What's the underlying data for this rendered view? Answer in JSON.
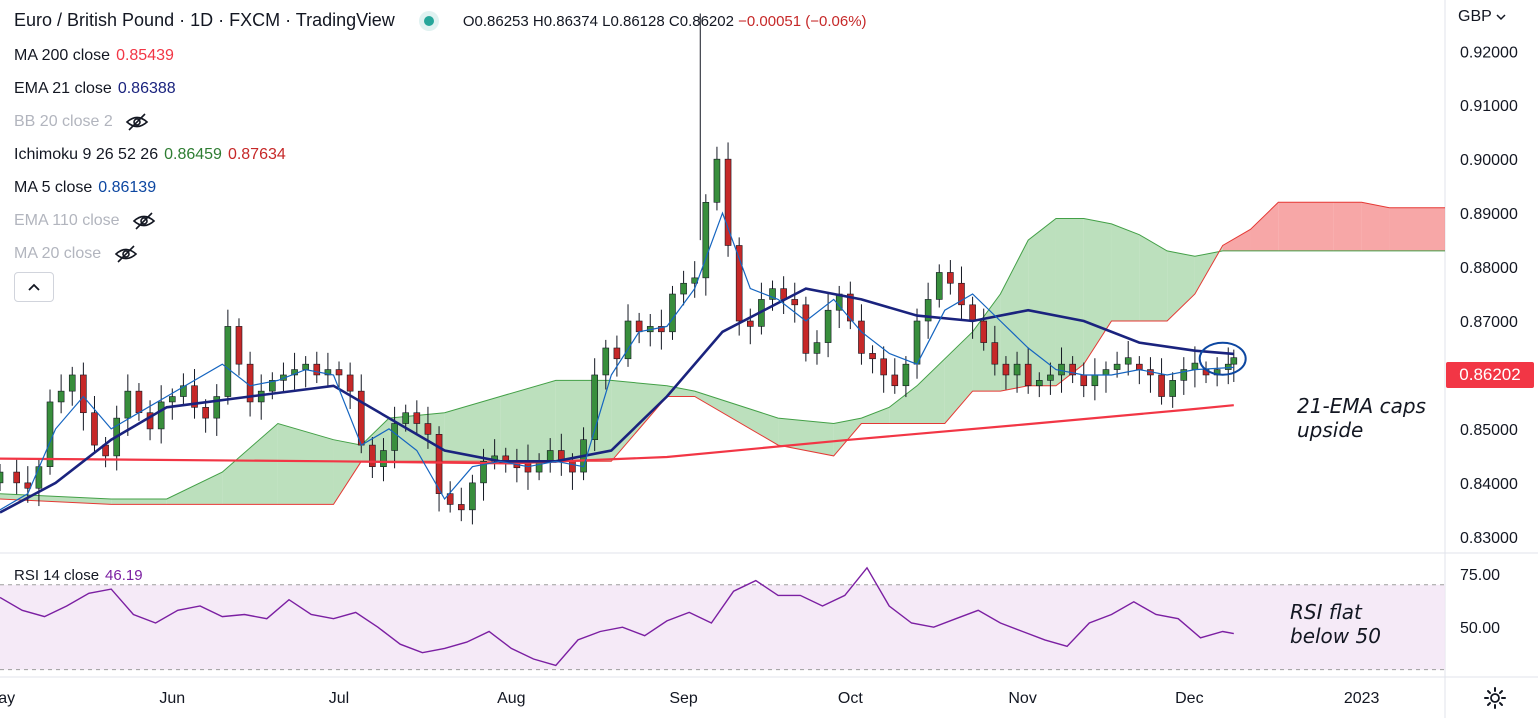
{
  "header": {
    "title": "Euro / British Pound · 1D · FXCM · TradingView",
    "ohlc": {
      "open": "O0.86253",
      "high": "H0.86374",
      "low": "L0.86128",
      "close": "C0.86202",
      "change": "−0.00051 (−0.06%)"
    },
    "currency": "GBP"
  },
  "indicators": [
    {
      "label": "MA 200 close",
      "value": "0.85439",
      "color": "#f23645"
    },
    {
      "label": "EMA 21 close",
      "value": "0.86388",
      "color": "#1a237e"
    },
    {
      "label": "BB 20 close 2",
      "hidden": true
    },
    {
      "label": "Ichimoku 9 26 52 26",
      "value": "0.86459",
      "value2": "0.87634",
      "color": "#2e7d32",
      "color2": "#c62828"
    },
    {
      "label": "MA 5 close",
      "value": "0.86139",
      "color": "#0d47a1"
    },
    {
      "label": "EMA 110 close",
      "hidden": true
    },
    {
      "label": "MA 20 close",
      "hidden": true
    }
  ],
  "price_badge": "0.86202",
  "annotations": {
    "ema_note": [
      "21-EMA caps",
      "upside"
    ],
    "rsi_note": [
      "RSI flat",
      "below 50"
    ]
  },
  "rsi": {
    "label": "RSI 14 close",
    "value": "46.19",
    "color": "#7b1fa2"
  },
  "colors": {
    "up": "#388e3c",
    "down": "#c62828",
    "cloud_up": "#a5d6a7",
    "cloud_down": "#f48a8a",
    "ma200": "#f23645",
    "ema21": "#1a237e",
    "ma5": "#1565c0",
    "rsi": "#7b1fa2"
  },
  "chart_data": [
    {
      "type": "candlestick",
      "title": "Euro / British Pound · 1D · FXCM",
      "x_ticks": [
        "May",
        "Jun",
        "Jul",
        "Aug",
        "Sep",
        "Oct",
        "Nov",
        "Dec",
        "2023"
      ],
      "x_tick_days": [
        0,
        31,
        61,
        92,
        123,
        153,
        184,
        214,
        245
      ],
      "y_ticks": [
        "0.83000",
        "0.84000",
        "0.85000",
        "0.86000",
        "0.87000",
        "0.88000",
        "0.89000",
        "0.90000",
        "0.91000",
        "0.92000"
      ],
      "ylim": [
        0.827,
        0.9295
      ],
      "xlim_days": [
        0,
        260
      ],
      "candles_monthly_summary": [
        {
          "month": "May",
          "open": 0.842,
          "high": 0.862,
          "low": 0.837,
          "close": 0.856
        },
        {
          "month": "Jun",
          "open": 0.856,
          "high": 0.872,
          "low": 0.848,
          "close": 0.861
        },
        {
          "month": "Jul",
          "open": 0.86,
          "high": 0.867,
          "low": 0.841,
          "close": 0.847
        },
        {
          "month": "Aug",
          "open": 0.847,
          "high": 0.851,
          "low": 0.8345,
          "close": 0.844
        },
        {
          "month": "Sep",
          "open": 0.844,
          "high": 0.927,
          "low": 0.842,
          "close": 0.879
        },
        {
          "month": "Oct",
          "open": 0.879,
          "high": 0.886,
          "low": 0.857,
          "close": 0.871
        },
        {
          "month": "Nov",
          "open": 0.871,
          "high": 0.883,
          "low": 0.857,
          "close": 0.862
        },
        {
          "month": "Dec",
          "open": 0.862,
          "high": 0.8637,
          "low": 0.855,
          "close": 0.862
        }
      ],
      "close_series": {
        "x": [
          0,
          3,
          5,
          7,
          9,
          11,
          13,
          15,
          17,
          19,
          21,
          23,
          25,
          27,
          29,
          31,
          33,
          35,
          37,
          39,
          41,
          43,
          45,
          47,
          49,
          51,
          53,
          55,
          57,
          59,
          61,
          63,
          65,
          67,
          69,
          71,
          73,
          75,
          77,
          79,
          81,
          83,
          85,
          87,
          89,
          91,
          93,
          95,
          97,
          99,
          101,
          103,
          105,
          107,
          109,
          111,
          113,
          115,
          117,
          119,
          121,
          123,
          125,
          127,
          129,
          131,
          133,
          135,
          137,
          139,
          141,
          143,
          145,
          147,
          149,
          151,
          153,
          155,
          157,
          159,
          161,
          163,
          165,
          167,
          169,
          171,
          173,
          175,
          177,
          179,
          181,
          183,
          185,
          187,
          189,
          191,
          193,
          195,
          197,
          199,
          201,
          203,
          205,
          207,
          209,
          211,
          213,
          215,
          217,
          219,
          221,
          222
        ],
        "y": [
          0.842,
          0.84,
          0.839,
          0.843,
          0.855,
          0.857,
          0.86,
          0.853,
          0.847,
          0.845,
          0.852,
          0.857,
          0.853,
          0.85,
          0.855,
          0.856,
          0.858,
          0.854,
          0.852,
          0.856,
          0.869,
          0.862,
          0.855,
          0.857,
          0.859,
          0.86,
          0.861,
          0.862,
          0.86,
          0.861,
          0.86,
          0.857,
          0.847,
          0.843,
          0.846,
          0.851,
          0.853,
          0.851,
          0.849,
          0.838,
          0.836,
          0.835,
          0.84,
          0.844,
          0.845,
          0.844,
          0.844,
          0.842,
          0.844,
          0.846,
          0.844,
          0.842,
          0.848,
          0.86,
          0.865,
          0.863,
          0.87,
          0.868,
          0.869,
          0.868,
          0.875,
          0.877,
          0.878,
          0.892,
          0.9,
          0.884,
          0.87,
          0.869,
          0.874,
          0.876,
          0.874,
          0.873,
          0.864,
          0.866,
          0.872,
          0.875,
          0.87,
          0.864,
          0.863,
          0.86,
          0.858,
          0.862,
          0.87,
          0.874,
          0.879,
          0.877,
          0.873,
          0.87,
          0.866,
          0.862,
          0.86,
          0.862,
          0.858,
          0.859,
          0.86,
          0.862,
          0.86,
          0.858,
          0.86,
          0.861,
          0.862,
          0.862,
          0.861,
          0.86,
          0.856,
          0.859,
          0.861,
          0.861,
          0.86,
          0.861,
          0.862,
          0.862
        ]
      },
      "ma200": {
        "x": [
          0,
          60,
          92,
          120,
          153,
          184,
          214,
          222
        ],
        "y": [
          0.8445,
          0.844,
          0.8436,
          0.8448,
          0.848,
          0.8508,
          0.8536,
          0.8544
        ]
      },
      "ema21": {
        "x": [
          0,
          10,
          20,
          30,
          45,
          60,
          70,
          80,
          90,
          100,
          110,
          120,
          130,
          145,
          155,
          165,
          175,
          185,
          195,
          205,
          215,
          222
        ],
        "y": [
          0.8345,
          0.84,
          0.848,
          0.854,
          0.856,
          0.858,
          0.852,
          0.846,
          0.844,
          0.844,
          0.846,
          0.856,
          0.868,
          0.876,
          0.874,
          0.871,
          0.87,
          0.872,
          0.87,
          0.866,
          0.8645,
          0.8639
        ]
      },
      "ma5": {
        "x": [
          0,
          5,
          10,
          15,
          20,
          25,
          30,
          40,
          45,
          50,
          55,
          60,
          65,
          70,
          75,
          80,
          85,
          90,
          95,
          100,
          105,
          110,
          115,
          120,
          125,
          130,
          135,
          140,
          145,
          150,
          155,
          160,
          165,
          170,
          175,
          180,
          185,
          190,
          195,
          200,
          205,
          210,
          215,
          222
        ],
        "y": [
          0.835,
          0.838,
          0.85,
          0.856,
          0.85,
          0.853,
          0.856,
          0.862,
          0.858,
          0.859,
          0.861,
          0.86,
          0.847,
          0.85,
          0.846,
          0.837,
          0.843,
          0.844,
          0.843,
          0.844,
          0.843,
          0.86,
          0.868,
          0.869,
          0.876,
          0.89,
          0.876,
          0.874,
          0.87,
          0.874,
          0.868,
          0.864,
          0.862,
          0.872,
          0.875,
          0.87,
          0.865,
          0.861,
          0.86,
          0.86,
          0.861,
          0.86,
          0.861,
          0.8614
        ]
      },
      "ichimoku_cloud": {
        "x": [
          0,
          20,
          30,
          40,
          50,
          60,
          65,
          70,
          80,
          90,
          100,
          110,
          120,
          125,
          140,
          150,
          155,
          160,
          165,
          170,
          175,
          180,
          185,
          190,
          195,
          200,
          205,
          210,
          215,
          220,
          225,
          230,
          240,
          245,
          250,
          260
        ],
        "span_a": [
          0.838,
          0.837,
          0.837,
          0.842,
          0.851,
          0.848,
          0.847,
          0.852,
          0.853,
          0.856,
          0.859,
          0.859,
          0.858,
          0.857,
          0.852,
          0.851,
          0.852,
          0.854,
          0.858,
          0.863,
          0.868,
          0.875,
          0.885,
          0.889,
          0.889,
          0.888,
          0.886,
          0.883,
          0.882,
          0.883,
          0.883,
          0.883,
          0.883,
          0.883,
          0.883,
          0.883
        ],
        "span_b": [
          0.837,
          0.836,
          0.836,
          0.836,
          0.836,
          0.836,
          0.844,
          0.844,
          0.844,
          0.844,
          0.844,
          0.844,
          0.856,
          0.856,
          0.847,
          0.845,
          0.851,
          0.851,
          0.851,
          0.851,
          0.857,
          0.857,
          0.858,
          0.858,
          0.862,
          0.87,
          0.87,
          0.87,
          0.875,
          0.884,
          0.887,
          0.892,
          0.892,
          0.892,
          0.891,
          0.891
        ]
      }
    },
    {
      "type": "line",
      "title": "RSI 14 close",
      "y_ticks": [
        "75.00",
        "50.00"
      ],
      "ylim": [
        27,
        85
      ],
      "band": [
        30,
        70
      ],
      "x": [
        0,
        4,
        8,
        12,
        16,
        20,
        24,
        28,
        32,
        36,
        40,
        44,
        48,
        52,
        56,
        60,
        64,
        68,
        72,
        76,
        80,
        84,
        88,
        92,
        96,
        100,
        104,
        108,
        112,
        116,
        120,
        124,
        128,
        132,
        136,
        140,
        144,
        148,
        152,
        156,
        160,
        164,
        168,
        172,
        176,
        180,
        184,
        188,
        192,
        196,
        200,
        204,
        208,
        212,
        216,
        220,
        222
      ],
      "values": [
        64,
        58,
        55,
        60,
        66,
        68,
        56,
        52,
        58,
        60,
        55,
        56,
        54,
        63,
        56,
        54,
        57,
        50,
        42,
        38,
        40,
        43,
        48,
        40,
        35,
        32,
        44,
        48,
        50,
        46,
        53,
        57,
        52,
        67,
        72,
        65,
        65,
        60,
        65,
        78,
        60,
        52,
        50,
        54,
        58,
        52,
        48,
        44,
        41,
        52,
        56,
        62,
        56,
        54,
        45,
        48,
        47
      ]
    }
  ]
}
